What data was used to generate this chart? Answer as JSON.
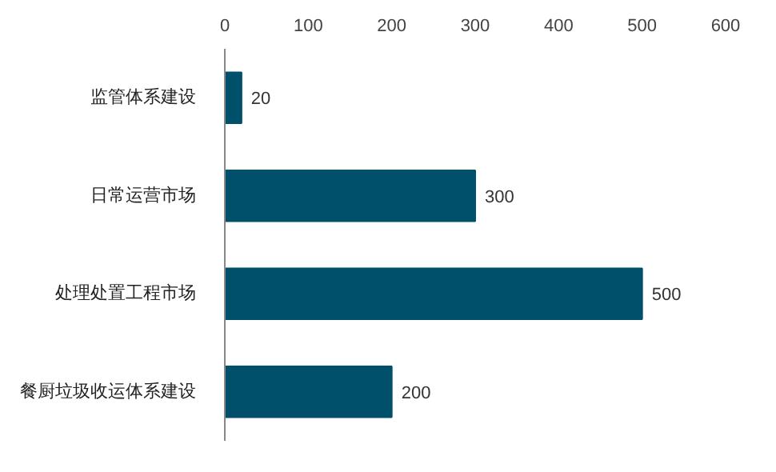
{
  "chart_data": {
    "type": "bar",
    "orientation": "horizontal",
    "categories": [
      "监管体系建设",
      "日常运营市场",
      "处理处置工程市场",
      "餐厨垃圾收运体系建设"
    ],
    "values": [
      20,
      300,
      500,
      200
    ],
    "color": "#004f6b",
    "xlim": [
      0,
      600
    ],
    "xticks": [
      0,
      100,
      200,
      300,
      400,
      500,
      600
    ],
    "data_labels": true,
    "grid": false
  }
}
